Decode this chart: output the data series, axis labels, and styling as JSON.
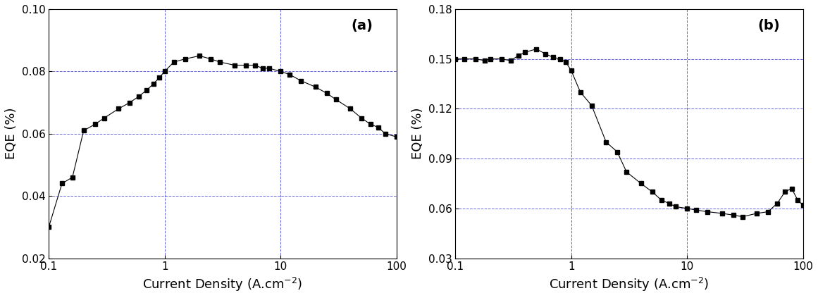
{
  "panel_a": {
    "label": "(a)",
    "x": [
      0.1,
      0.13,
      0.16,
      0.2,
      0.25,
      0.3,
      0.4,
      0.5,
      0.6,
      0.7,
      0.8,
      0.9,
      1.0,
      1.2,
      1.5,
      2.0,
      2.5,
      3.0,
      4.0,
      5.0,
      6.0,
      7.0,
      8.0,
      10.0,
      12.0,
      15.0,
      20.0,
      25.0,
      30.0,
      40.0,
      50.0,
      60.0,
      70.0,
      80.0,
      100.0
    ],
    "y": [
      0.03,
      0.044,
      0.046,
      0.061,
      0.063,
      0.065,
      0.068,
      0.07,
      0.072,
      0.074,
      0.076,
      0.078,
      0.08,
      0.083,
      0.084,
      0.085,
      0.084,
      0.083,
      0.082,
      0.082,
      0.082,
      0.081,
      0.081,
      0.08,
      0.079,
      0.077,
      0.075,
      0.073,
      0.071,
      0.068,
      0.065,
      0.063,
      0.062,
      0.06,
      0.059
    ],
    "ylabel": "EQE (%)",
    "xlabel": "Current Density (A.cm$^{-2}$)",
    "ylim": [
      0.02,
      0.1
    ],
    "yticks": [
      0.02,
      0.04,
      0.06,
      0.08,
      0.1
    ],
    "yticklabels": [
      "0.02",
      "0.04",
      "0.06",
      "0.08",
      "0.10"
    ],
    "xlim": [
      0.1,
      100
    ],
    "xticks": [
      0.1,
      1,
      10,
      100
    ],
    "xticklabels": [
      "0.1",
      "1",
      "10",
      "100"
    ]
  },
  "panel_b": {
    "label": "(b)",
    "x": [
      0.1,
      0.12,
      0.15,
      0.18,
      0.2,
      0.25,
      0.3,
      0.35,
      0.4,
      0.5,
      0.6,
      0.7,
      0.8,
      0.9,
      1.0,
      1.2,
      1.5,
      2.0,
      2.5,
      3.0,
      4.0,
      5.0,
      6.0,
      7.0,
      8.0,
      10.0,
      12.0,
      15.0,
      20.0,
      25.0,
      30.0,
      40.0,
      50.0,
      60.0,
      70.0,
      80.0,
      90.0,
      100.0
    ],
    "y": [
      0.15,
      0.15,
      0.15,
      0.149,
      0.15,
      0.15,
      0.149,
      0.152,
      0.154,
      0.156,
      0.153,
      0.151,
      0.15,
      0.148,
      0.143,
      0.13,
      0.122,
      0.1,
      0.094,
      0.082,
      0.075,
      0.07,
      0.065,
      0.063,
      0.061,
      0.06,
      0.059,
      0.058,
      0.057,
      0.056,
      0.055,
      0.057,
      0.058,
      0.063,
      0.07,
      0.072,
      0.065,
      0.062
    ],
    "ylabel": "EQE (%)",
    "xlabel": "Current Density (A.cm$^{-2}$)",
    "ylim": [
      0.03,
      0.18
    ],
    "yticks": [
      0.03,
      0.06,
      0.09,
      0.12,
      0.15,
      0.18
    ],
    "yticklabels": [
      "0.03",
      "0.06",
      "0.09",
      "0.12",
      "0.15",
      "0.18"
    ],
    "xlim": [
      0.1,
      100
    ],
    "xticks": [
      0.1,
      1,
      10,
      100
    ],
    "xticklabels": [
      "0.1",
      "1",
      "10",
      "100"
    ]
  },
  "line_color": "#000000",
  "marker": "s",
  "markersize": 4,
  "linewidth": 0.8,
  "grid_color": "#0000cc",
  "grid_linestyle": "--",
  "grid_alpha": 0.6,
  "grid_linewidth": 0.7,
  "label_fontsize": 13,
  "tick_fontsize": 11,
  "panel_label_fontsize": 14
}
